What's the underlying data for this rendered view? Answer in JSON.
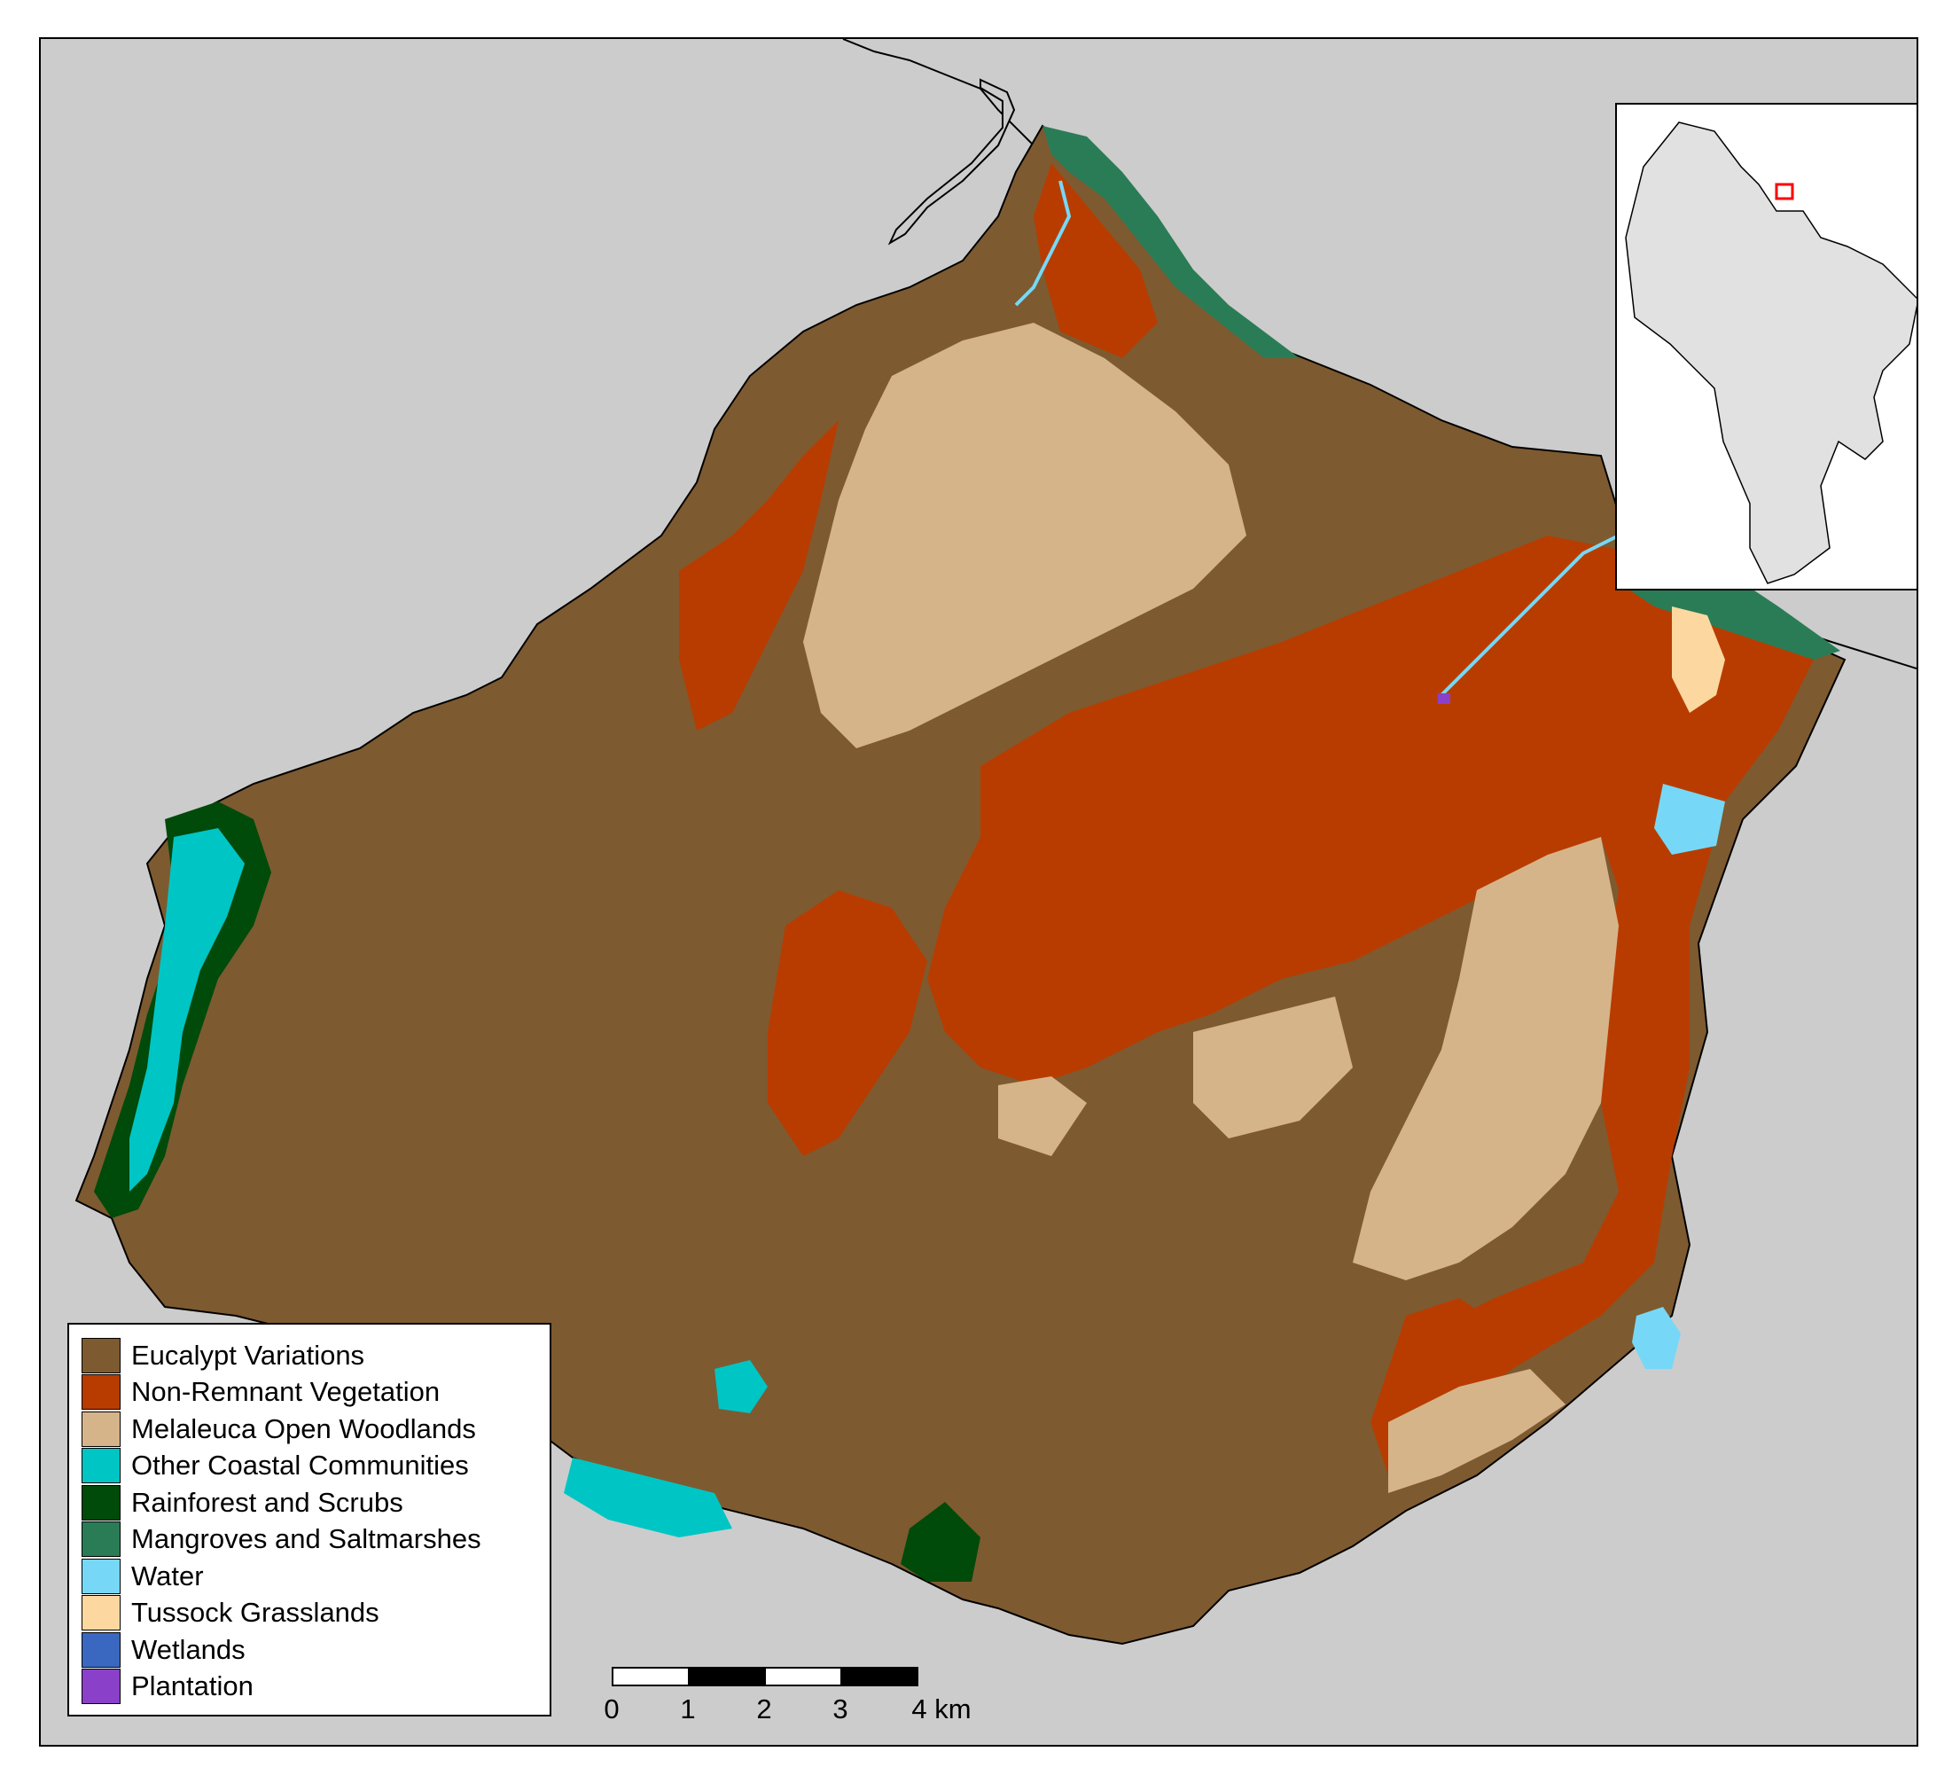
{
  "legend": {
    "items": [
      {
        "label": "Eucalypt Variations",
        "color": "#7e5a30"
      },
      {
        "label": "Non-Remnant Vegetation",
        "color": "#b83c00"
      },
      {
        "label": "Melaleuca Open Woodlands",
        "color": "#d6b48a"
      },
      {
        "label": "Other Coastal Communities",
        "color": "#00c5c5"
      },
      {
        "label": "Rainforest and Scrubs",
        "color": "#004a0a"
      },
      {
        "label": "Mangroves and Saltmarshes",
        "color": "#2a7c56"
      },
      {
        "label": "Water",
        "color": "#76d8f6"
      },
      {
        "label": "Tussock Grasslands",
        "color": "#fcd8a0"
      },
      {
        "label": "Wetlands",
        "color": "#3a68c0"
      },
      {
        "label": "Plantation",
        "color": "#8a40c8"
      }
    ]
  },
  "scalebar": {
    "ticks": [
      "0",
      "1",
      "2",
      "3",
      "4 km"
    ]
  },
  "colors": {
    "background": "#cccccc",
    "inset_land": "#e1e1e1",
    "inset_highlight": "#ff0000"
  }
}
